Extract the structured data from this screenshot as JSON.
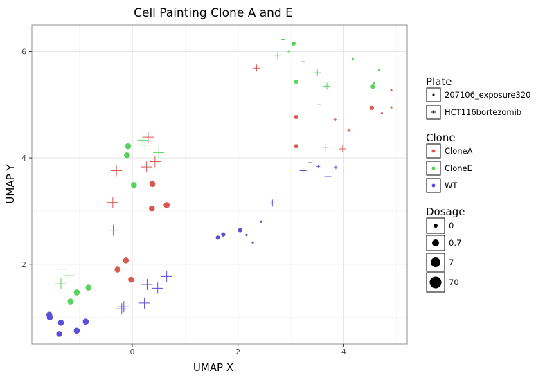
{
  "chart_data": {
    "type": "scatter",
    "title": "Cell Painting Clone A and E",
    "xlabel": "UMAP X",
    "ylabel": "UMAP Y",
    "xlim": [
      -1.9,
      5.2
    ],
    "ylim": [
      0.5,
      6.5
    ],
    "xticks": [
      0,
      2,
      4
    ],
    "yticks": [
      2,
      4,
      6
    ],
    "grid": true,
    "colors": {
      "CloneA": "#d9584f",
      "CloneE": "#55d35b",
      "WT": "#5b4fd6"
    },
    "legend": {
      "position": "right",
      "plate": {
        "title": "Plate",
        "entries": [
          "207106_exposure320",
          "HCT116bortezomib"
        ]
      },
      "clone": {
        "title": "Clone",
        "entries": [
          "CloneA",
          "CloneE",
          "WT"
        ]
      },
      "dosage": {
        "title": "Dosage",
        "entries": [
          "0",
          "0.7",
          "7",
          "70"
        ]
      }
    },
    "series": [
      {
        "name": "CloneA",
        "plate": "207106_exposure320",
        "dosage": "0.7",
        "points": [
          [
            3.1,
            4.77
          ],
          [
            3.1,
            4.22
          ],
          [
            4.53,
            4.94
          ]
        ]
      },
      {
        "name": "CloneA",
        "plate": "207106_exposure320",
        "dosage": "7",
        "points": [
          [
            0.38,
            3.51
          ],
          [
            0.37,
            3.05
          ],
          [
            0.65,
            3.11
          ],
          [
            -0.12,
            2.07
          ],
          [
            -0.28,
            1.9
          ],
          [
            -0.02,
            1.71
          ]
        ]
      },
      {
        "name": "CloneA",
        "plate": "207106_exposure320",
        "dosage": "0",
        "points": [
          [
            4.9,
            5.27
          ],
          [
            4.9,
            4.95
          ],
          [
            4.72,
            4.84
          ]
        ]
      },
      {
        "name": "CloneA",
        "plate": "HCT116bortezomib",
        "dosage": "0.7",
        "points": [
          [
            2.35,
            5.69
          ],
          [
            3.65,
            4.2
          ],
          [
            3.98,
            4.17
          ]
        ]
      },
      {
        "name": "CloneA",
        "plate": "HCT116bortezomib",
        "dosage": "0",
        "points": [
          [
            3.53,
            5.0
          ],
          [
            3.84,
            4.72
          ],
          [
            4.1,
            4.52
          ]
        ]
      },
      {
        "name": "CloneA",
        "plate": "HCT116bortezomib",
        "dosage": "7",
        "points": [
          [
            0.3,
            4.39
          ],
          [
            0.43,
            3.93
          ],
          [
            0.27,
            3.83
          ],
          [
            -0.3,
            3.76
          ],
          [
            -0.37,
            3.16
          ],
          [
            -0.36,
            2.64
          ]
        ]
      },
      {
        "name": "CloneE",
        "plate": "207106_exposure320",
        "dosage": "0.7",
        "points": [
          [
            3.05,
            6.15
          ],
          [
            3.1,
            5.43
          ],
          [
            4.55,
            5.34
          ]
        ]
      },
      {
        "name": "CloneE",
        "plate": "207106_exposure320",
        "dosage": "0",
        "points": [
          [
            4.17,
            5.86
          ],
          [
            4.67,
            5.65
          ],
          [
            4.57,
            5.4
          ]
        ]
      },
      {
        "name": "CloneE",
        "plate": "207106_exposure320",
        "dosage": "7",
        "points": [
          [
            -0.08,
            4.22
          ],
          [
            -0.1,
            4.05
          ],
          [
            0.03,
            3.49
          ],
          [
            -0.83,
            1.56
          ],
          [
            -1.05,
            1.47
          ],
          [
            -1.17,
            1.3
          ]
        ]
      },
      {
        "name": "CloneE",
        "plate": "HCT116bortezomib",
        "dosage": "0",
        "points": [
          [
            2.85,
            6.22
          ],
          [
            2.96,
            6.0
          ],
          [
            3.23,
            5.81
          ]
        ]
      },
      {
        "name": "CloneE",
        "plate": "HCT116bortezomib",
        "dosage": "0.7",
        "points": [
          [
            2.75,
            5.93
          ],
          [
            3.5,
            5.6
          ],
          [
            3.68,
            5.35
          ]
        ]
      },
      {
        "name": "CloneE",
        "plate": "HCT116bortezomib",
        "dosage": "7",
        "points": [
          [
            0.2,
            4.33
          ],
          [
            0.24,
            4.24
          ],
          [
            0.5,
            4.1
          ],
          [
            -1.33,
            1.91
          ],
          [
            -1.2,
            1.79
          ],
          [
            -1.35,
            1.63
          ]
        ]
      },
      {
        "name": "WT",
        "plate": "207106_exposure320",
        "dosage": "0.7",
        "points": [
          [
            1.62,
            2.5
          ],
          [
            1.72,
            2.56
          ],
          [
            2.04,
            2.64
          ]
        ]
      },
      {
        "name": "WT",
        "plate": "207106_exposure320",
        "dosage": "0",
        "points": [
          [
            2.16,
            2.55
          ],
          [
            2.28,
            2.41
          ],
          [
            2.44,
            2.8
          ]
        ]
      },
      {
        "name": "WT",
        "plate": "207106_exposure320",
        "dosage": "7",
        "points": [
          [
            -1.57,
            1.05
          ],
          [
            -1.56,
            1.0
          ],
          [
            -1.35,
            0.9
          ],
          [
            -0.88,
            0.92
          ],
          [
            -1.05,
            0.75
          ],
          [
            -1.38,
            0.69
          ]
        ]
      },
      {
        "name": "WT",
        "plate": "HCT116bortezomib",
        "dosage": "0.7",
        "points": [
          [
            2.65,
            3.15
          ],
          [
            3.23,
            3.76
          ],
          [
            3.7,
            3.65
          ]
        ]
      },
      {
        "name": "WT",
        "plate": "HCT116bortezomib",
        "dosage": "0",
        "points": [
          [
            3.36,
            3.91
          ],
          [
            3.52,
            3.84
          ],
          [
            3.85,
            3.82
          ]
        ]
      },
      {
        "name": "WT",
        "plate": "HCT116bortezomib",
        "dosage": "7",
        "points": [
          [
            0.65,
            1.77
          ],
          [
            0.28,
            1.62
          ],
          [
            0.48,
            1.55
          ],
          [
            0.23,
            1.27
          ],
          [
            -0.16,
            1.2
          ],
          [
            -0.2,
            1.16
          ]
        ]
      }
    ]
  }
}
